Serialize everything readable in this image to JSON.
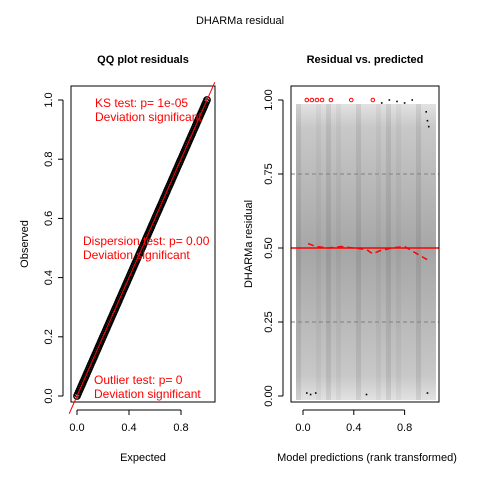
{
  "title": "DHARMa residual",
  "chart_data": [
    {
      "type": "scatter",
      "panel": "qq",
      "title": "QQ plot residuals",
      "xlabel": "Expected",
      "ylabel": "Observed",
      "xlim": [
        0,
        1
      ],
      "ylim": [
        0,
        1
      ],
      "xticks": [
        "0.0",
        "0.4",
        "0.8"
      ],
      "yticks": [
        "0.0",
        "0.2",
        "0.4",
        "0.6",
        "0.8",
        "1.0"
      ],
      "point_color": "#000000",
      "reference_line": {
        "x": [
          0,
          1
        ],
        "y": [
          0,
          1
        ],
        "color": "#ff0000"
      },
      "annotations": [
        {
          "lines": [
            "KS test: p= 1e-05",
            "Deviation  significant"
          ]
        },
        {
          "lines": [
            "Dispersion test: p= 0.00",
            "Deviation  significant"
          ]
        },
        {
          "lines": [
            "Outlier test: p= 0",
            "Deviation  significant"
          ]
        }
      ],
      "annotation_color": "#ff0000"
    },
    {
      "type": "scatter",
      "panel": "residual-vs-predicted",
      "title": "Residual vs. predicted",
      "xlabel": "Model predictions (rank transformed)",
      "ylabel": "DHARMa residual",
      "xlim": [
        0,
        1
      ],
      "ylim": [
        0,
        1
      ],
      "xticks": [
        "0.0",
        "0.4",
        "0.8"
      ],
      "yticks": [
        "0.00",
        "0.25",
        "0.50",
        "0.75",
        "1.00"
      ],
      "reference_lines": [
        {
          "y": 0.25,
          "style": "dashed",
          "color": "#808080"
        },
        {
          "y": 0.5,
          "style": "solid",
          "color": "#ff0000"
        },
        {
          "y": 0.75,
          "style": "dashed",
          "color": "#808080"
        }
      ],
      "smooth_line": {
        "x": [
          0.04,
          0.1,
          0.2,
          0.3,
          0.4,
          0.5,
          0.55,
          0.6,
          0.7,
          0.8,
          0.9,
          0.98
        ],
        "y": [
          0.515,
          0.505,
          0.5,
          0.505,
          0.5,
          0.495,
          0.48,
          0.49,
          0.5,
          0.505,
          0.48,
          0.46
        ],
        "color": "#ff0000"
      },
      "outliers_high": {
        "x": [
          0.03,
          0.07,
          0.11,
          0.15,
          0.22,
          0.38,
          0.55
        ],
        "y": [
          1.0,
          1.0,
          1.0,
          1.0,
          1.0,
          1.0,
          1.0
        ],
        "color": "#ff0000"
      },
      "points_high": {
        "x": [
          0.62,
          0.68,
          0.74,
          0.8,
          0.86,
          0.97,
          0.98,
          0.99
        ],
        "y": [
          0.99,
          1.0,
          0.995,
          0.99,
          1.0,
          0.96,
          0.93,
          0.91
        ]
      },
      "points_low": {
        "x": [
          0.03,
          0.06,
          0.1,
          0.5,
          0.98
        ],
        "y": [
          0.01,
          0.005,
          0.01,
          0.005,
          0.01
        ]
      },
      "background": "gray density band"
    }
  ]
}
